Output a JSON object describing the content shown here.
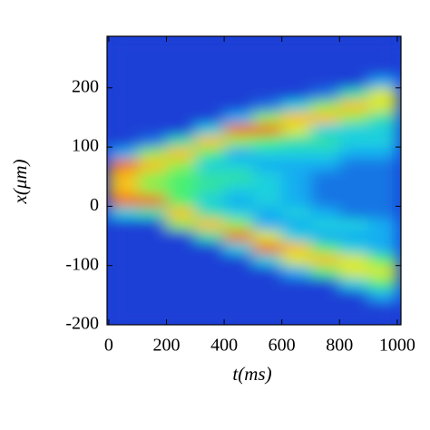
{
  "chart_data": {
    "type": "heatmap",
    "x_label": "t(ms)",
    "y_label": "x(μm)",
    "xlim": [
      -6,
      1013
    ],
    "ylim": [
      -200,
      287
    ],
    "xticks": [
      0,
      200,
      400,
      600,
      800,
      1000
    ],
    "yticks": [
      -200,
      -100,
      0,
      100,
      200
    ],
    "x_edges": [
      0,
      100,
      200,
      300,
      400,
      500,
      600,
      700,
      800,
      900,
      1000
    ],
    "y_edges": [
      -200,
      -180,
      -160,
      -140,
      -120,
      -100,
      -80,
      -60,
      -40,
      -20,
      0,
      20,
      40,
      60,
      80,
      100,
      120,
      140,
      160,
      180,
      200,
      220,
      240,
      260,
      280
    ],
    "zlim": [
      0,
      1
    ],
    "colormap": [
      "#1c3fd6",
      "#10c8f8",
      "#48f070",
      "#ffe818",
      "#e41c18"
    ],
    "z": [
      [
        0,
        0,
        0,
        0,
        0,
        0,
        0,
        0,
        0,
        0
      ],
      [
        0,
        0,
        0,
        0,
        0,
        0,
        0,
        0,
        0,
        0
      ],
      [
        0,
        0,
        0,
        0,
        0,
        0,
        0,
        0,
        0,
        0.2
      ],
      [
        0,
        0,
        0,
        0,
        0,
        0,
        0,
        0,
        0.3,
        0.5
      ],
      [
        0,
        0,
        0,
        0,
        0,
        0,
        0.2,
        0.5,
        0.7,
        0.7
      ],
      [
        0,
        0,
        0,
        0,
        0,
        0.3,
        0.7,
        0.8,
        0.7,
        0.5
      ],
      [
        0,
        0,
        0,
        0,
        0.3,
        0.9,
        0.8,
        0.5,
        0.3,
        0.2
      ],
      [
        0,
        0,
        0,
        0.4,
        0.9,
        0.7,
        0.3,
        0.2,
        0.2,
        0.2
      ],
      [
        0,
        0,
        0.6,
        0.8,
        0.6,
        0.2,
        0.2,
        0.3,
        0.3,
        0.2
      ],
      [
        0.3,
        0.4,
        0.8,
        0.4,
        0.3,
        0.2,
        0.3,
        0.2,
        0.1,
        0.1
      ],
      [
        0.9,
        0.9,
        0.5,
        0.3,
        0.2,
        0.3,
        0.2,
        0.1,
        0.1,
        0.1
      ],
      [
        0.8,
        0.6,
        0.5,
        0.4,
        0.3,
        0.3,
        0.2,
        0.1,
        0.1,
        0.1
      ],
      [
        0.8,
        0.6,
        0.5,
        0.4,
        0.4,
        0.3,
        0.2,
        0.1,
        0.1,
        0.1
      ],
      [
        0.9,
        0.8,
        0.6,
        0.3,
        0.3,
        0.2,
        0.2,
        0.2,
        0.1,
        0.1
      ],
      [
        0.2,
        0.6,
        0.8,
        0.5,
        0.2,
        0.3,
        0.3,
        0.3,
        0.2,
        0.2
      ],
      [
        0,
        0.1,
        0.4,
        0.8,
        0.6,
        0.5,
        0.4,
        0.4,
        0.3,
        0.3
      ],
      [
        0,
        0,
        0,
        0.3,
        0.9,
        0.9,
        0.7,
        0.3,
        0.3,
        0.3
      ],
      [
        0,
        0,
        0,
        0,
        0.2,
        0.6,
        0.8,
        0.8,
        0.6,
        0.4
      ],
      [
        0,
        0,
        0,
        0,
        0,
        0.1,
        0.3,
        0.6,
        0.8,
        0.7
      ],
      [
        0,
        0,
        0,
        0,
        0,
        0,
        0,
        0.1,
        0.4,
        0.7
      ],
      [
        0,
        0,
        0,
        0,
        0,
        0,
        0,
        0,
        0,
        0.2
      ],
      [
        0,
        0,
        0,
        0,
        0,
        0,
        0,
        0,
        0,
        0
      ],
      [
        0,
        0,
        0,
        0,
        0,
        0,
        0,
        0,
        0,
        0
      ],
      [
        0,
        0,
        0,
        0,
        0,
        0,
        0,
        0,
        0,
        0
      ]
    ]
  }
}
